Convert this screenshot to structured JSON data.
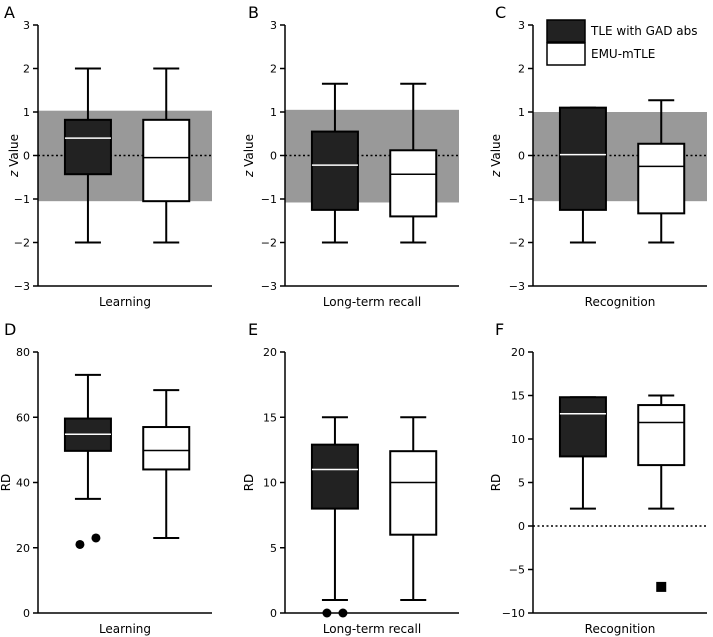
{
  "legend": {
    "entries": [
      {
        "label": "TLE with GAD abs",
        "color": "#222222"
      },
      {
        "label": "EMU-mTLE",
        "color": "#ffffff"
      }
    ]
  },
  "colors": {
    "band": "#999999",
    "dark_box": "#222222",
    "light_box": "#ffffff",
    "axis": "#000000"
  },
  "chart_data": [
    {
      "panel": "A",
      "type": "box",
      "xlabel": "Learning",
      "ylabel": "z Value",
      "ylim": [
        -3,
        3
      ],
      "yticks": [
        -3,
        -2,
        -1,
        0,
        1,
        2,
        3
      ],
      "shaded_band": [
        -1.05,
        1.03
      ],
      "reference_line": 0,
      "series": [
        {
          "name": "TLE with GAD abs",
          "min": -2,
          "q1": -0.43,
          "median": 0.4,
          "q3": 0.82,
          "max": 2,
          "outliers": []
        },
        {
          "name": "EMU-mTLE",
          "min": -2,
          "q1": -1.05,
          "median": -0.05,
          "q3": 0.82,
          "max": 2,
          "outliers": []
        }
      ]
    },
    {
      "panel": "B",
      "type": "box",
      "xlabel": "Long-term recall",
      "ylabel": "z Value",
      "ylim": [
        -3,
        3
      ],
      "yticks": [
        -3,
        -2,
        -1,
        0,
        1,
        2,
        3
      ],
      "shaded_band": [
        -1.08,
        1.05
      ],
      "reference_line": 0,
      "series": [
        {
          "name": "TLE with GAD abs",
          "min": -2,
          "q1": -1.25,
          "median": -0.22,
          "q3": 0.55,
          "max": 1.65,
          "outliers": []
        },
        {
          "name": "EMU-mTLE",
          "min": -2,
          "q1": -1.4,
          "median": -0.43,
          "q3": 0.12,
          "max": 1.65,
          "outliers": []
        }
      ]
    },
    {
      "panel": "C",
      "type": "box",
      "xlabel": "Recognition",
      "ylabel": "z Value",
      "ylim": [
        -3,
        3
      ],
      "yticks": [
        -3,
        -2,
        -1,
        0,
        1,
        2,
        3
      ],
      "shaded_band": [
        -1.05,
        1.0
      ],
      "reference_line": 0,
      "series": [
        {
          "name": "TLE with GAD abs",
          "min": -2,
          "q1": -1.25,
          "median": 0.02,
          "q3": 1.1,
          "max": 1.1,
          "outliers": []
        },
        {
          "name": "EMU-mTLE",
          "min": -2,
          "q1": -1.33,
          "median": -0.25,
          "q3": 0.27,
          "max": 1.27,
          "outliers": []
        }
      ]
    },
    {
      "panel": "D",
      "type": "box",
      "xlabel": "Learning",
      "ylabel": "RD",
      "ylim": [
        0,
        80
      ],
      "yticks": [
        0,
        20,
        40,
        60,
        80
      ],
      "shaded_band": null,
      "reference_line": null,
      "series": [
        {
          "name": "TLE with GAD abs",
          "min": 35,
          "q1": 49.7,
          "median": 54.8,
          "q3": 59.6,
          "max": 73,
          "outliers": [
            {
              "y": 21,
              "marker": "circle"
            },
            {
              "y": 23,
              "marker": "circle"
            }
          ]
        },
        {
          "name": "EMU-mTLE",
          "min": 23,
          "q1": 44,
          "median": 49.8,
          "q3": 57,
          "max": 68.3,
          "outliers": []
        }
      ]
    },
    {
      "panel": "E",
      "type": "box",
      "xlabel": "Long-term recall",
      "ylabel": "RD",
      "ylim": [
        0,
        20
      ],
      "yticks": [
        0,
        5,
        10,
        15,
        20
      ],
      "shaded_band": null,
      "reference_line": null,
      "series": [
        {
          "name": "TLE with GAD abs",
          "min": 1,
          "q1": 8,
          "median": 11,
          "q3": 12.9,
          "max": 15,
          "outliers": [
            {
              "y": 0,
              "marker": "circle"
            },
            {
              "y": 0,
              "marker": "circle"
            }
          ]
        },
        {
          "name": "EMU-mTLE",
          "min": 1,
          "q1": 6,
          "median": 10,
          "q3": 12.4,
          "max": 15,
          "outliers": []
        }
      ]
    },
    {
      "panel": "F",
      "type": "box",
      "xlabel": "Recognition",
      "ylabel": "RD",
      "ylim": [
        -10,
        20
      ],
      "yticks": [
        -10,
        -5,
        0,
        5,
        10,
        15,
        20
      ],
      "shaded_band": null,
      "reference_line": 0,
      "series": [
        {
          "name": "TLE with GAD abs",
          "min": 2,
          "q1": 8,
          "median": 12.9,
          "q3": 14.8,
          "max": 14.8,
          "outliers": []
        },
        {
          "name": "EMU-mTLE",
          "min": 2,
          "q1": 7,
          "median": 11.9,
          "q3": 13.9,
          "max": 15,
          "outliers": [
            {
              "y": -7,
              "marker": "square"
            }
          ]
        }
      ]
    }
  ]
}
